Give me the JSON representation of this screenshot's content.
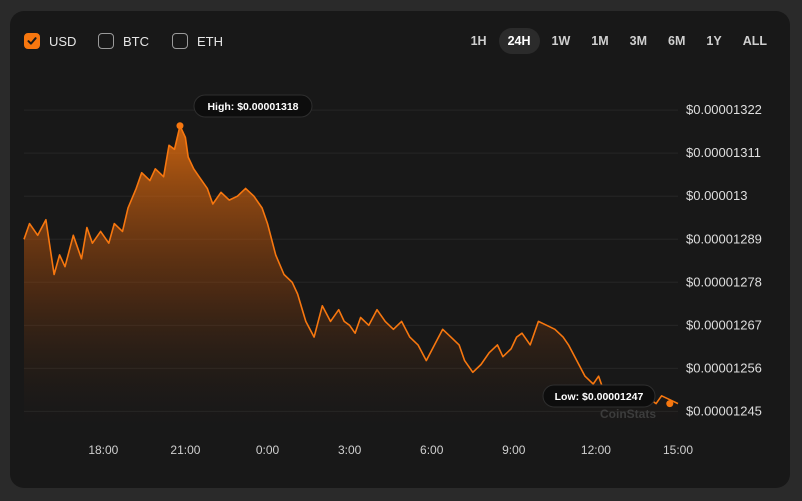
{
  "currencies": [
    {
      "label": "USD",
      "checked": true
    },
    {
      "label": "BTC",
      "checked": false
    },
    {
      "label": "ETH",
      "checked": false
    }
  ],
  "ranges": [
    {
      "label": "1H",
      "active": false
    },
    {
      "label": "24H",
      "active": true
    },
    {
      "label": "1W",
      "active": false
    },
    {
      "label": "1M",
      "active": false
    },
    {
      "label": "3M",
      "active": false
    },
    {
      "label": "6M",
      "active": false
    },
    {
      "label": "1Y",
      "active": false
    },
    {
      "label": "ALL",
      "active": false
    }
  ],
  "high_label": "High: $0.00001318",
  "low_label": "Low: $0.00001247",
  "watermark": "CoinStats",
  "colors": {
    "accent": "#f7770f",
    "background": "#181818"
  },
  "chart_data": {
    "type": "area",
    "title": "",
    "xlabel": "",
    "ylabel": "",
    "grid": true,
    "legend": "none",
    "ylim": [
      1.24e-05,
      1.33e-05
    ],
    "y_ticks": [
      {
        "value": 1.245e-05,
        "label": "$0.00001245"
      },
      {
        "value": 1.256e-05,
        "label": "$0.00001256"
      },
      {
        "value": 1.267e-05,
        "label": "$0.00001267"
      },
      {
        "value": 1.278e-05,
        "label": "$0.00001278"
      },
      {
        "value": 1.289e-05,
        "label": "$0.00001289"
      },
      {
        "value": 1.3e-05,
        "label": "$0.000013"
      },
      {
        "value": 1.311e-05,
        "label": "$0.00001311"
      },
      {
        "value": 1.322e-05,
        "label": "$0.00001322"
      }
    ],
    "x_ticks": [
      {
        "value": 18.0,
        "label": "18:00"
      },
      {
        "value": 21.0,
        "label": "21:00"
      },
      {
        "value": 24.0,
        "label": "0:00"
      },
      {
        "value": 27.0,
        "label": "3:00"
      },
      {
        "value": 30.0,
        "label": "6:00"
      },
      {
        "value": 33.0,
        "label": "9:00"
      },
      {
        "value": 36.0,
        "label": "12:00"
      },
      {
        "value": 39.0,
        "label": "15:00"
      }
    ],
    "xlim": [
      15.1,
      39.0
    ],
    "series": [
      {
        "name": "USD",
        "x": [
          15.1,
          15.3,
          15.6,
          15.9,
          16.2,
          16.4,
          16.6,
          16.9,
          17.2,
          17.4,
          17.6,
          17.9,
          18.2,
          18.4,
          18.7,
          18.9,
          19.2,
          19.4,
          19.7,
          19.9,
          20.2,
          20.4,
          20.6,
          20.8,
          21.0,
          21.1,
          21.3,
          21.5,
          21.8,
          22.0,
          22.3,
          22.6,
          22.9,
          23.2,
          23.5,
          23.8,
          24.0,
          24.3,
          24.6,
          24.9,
          25.1,
          25.4,
          25.7,
          26.0,
          26.3,
          26.6,
          26.8,
          27.0,
          27.2,
          27.4,
          27.7,
          28.0,
          28.3,
          28.6,
          28.9,
          29.2,
          29.5,
          29.8,
          30.1,
          30.4,
          30.7,
          31.0,
          31.2,
          31.5,
          31.8,
          32.1,
          32.4,
          32.6,
          32.9,
          33.1,
          33.3,
          33.6,
          33.9,
          34.2,
          34.5,
          34.8,
          35.0,
          35.3,
          35.6,
          35.9,
          36.1,
          36.3,
          36.6,
          36.9,
          37.1,
          37.4,
          37.7,
          38.0,
          38.2,
          38.4,
          38.7,
          39.0
        ],
        "y": [
          1.289e-05,
          1.293e-05,
          1.29e-05,
          1.294e-05,
          1.28e-05,
          1.285e-05,
          1.282e-05,
          1.29e-05,
          1.284e-05,
          1.292e-05,
          1.288e-05,
          1.291e-05,
          1.288e-05,
          1.293e-05,
          1.291e-05,
          1.297e-05,
          1.302e-05,
          1.306e-05,
          1.304e-05,
          1.307e-05,
          1.305e-05,
          1.313e-05,
          1.312e-05,
          1.318e-05,
          1.315e-05,
          1.31e-05,
          1.307e-05,
          1.305e-05,
          1.302e-05,
          1.298e-05,
          1.301e-05,
          1.299e-05,
          1.3e-05,
          1.302e-05,
          1.3e-05,
          1.297e-05,
          1.293e-05,
          1.285e-05,
          1.28e-05,
          1.278e-05,
          1.275e-05,
          1.268e-05,
          1.264e-05,
          1.272e-05,
          1.268e-05,
          1.271e-05,
          1.268e-05,
          1.267e-05,
          1.265e-05,
          1.269e-05,
          1.267e-05,
          1.271e-05,
          1.268e-05,
          1.266e-05,
          1.268e-05,
          1.264e-05,
          1.262e-05,
          1.258e-05,
          1.262e-05,
          1.266e-05,
          1.264e-05,
          1.262e-05,
          1.258e-05,
          1.255e-05,
          1.257e-05,
          1.26e-05,
          1.262e-05,
          1.259e-05,
          1.261e-05,
          1.264e-05,
          1.265e-05,
          1.262e-05,
          1.268e-05,
          1.267e-05,
          1.266e-05,
          1.264e-05,
          1.262e-05,
          1.258e-05,
          1.254e-05,
          1.252e-05,
          1.254e-05,
          1.25e-05,
          1.247e-05,
          1.249e-05,
          1.248e-05,
          1.247e-05,
          1.249e-05,
          1.248e-05,
          1.247e-05,
          1.249e-05,
          1.248e-05,
          1.247e-05
        ],
        "high": {
          "x": 20.8,
          "y": 1.318e-05
        },
        "low": {
          "x": 38.7,
          "y": 1.247e-05
        }
      }
    ]
  }
}
